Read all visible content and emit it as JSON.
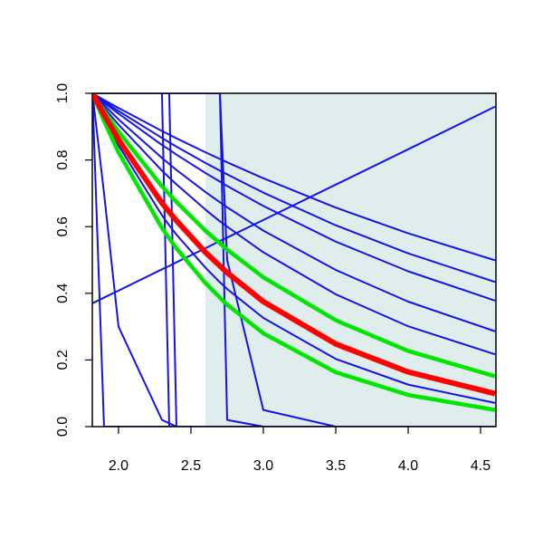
{
  "chart_data": {
    "type": "line",
    "xlim": [
      1.819,
      4.606
    ],
    "ylim": [
      0,
      1
    ],
    "xticks": [
      {
        "value": 2.0,
        "label": "2.0"
      },
      {
        "value": 2.5,
        "label": "2.5"
      },
      {
        "value": 3.0,
        "label": "3.0"
      },
      {
        "value": 3.5,
        "label": "3.5"
      },
      {
        "value": 4.0,
        "label": "4.0"
      },
      {
        "value": 4.5,
        "label": "4.5"
      }
    ],
    "yticks": [
      {
        "value": 0,
        "label": "0.0"
      },
      {
        "value": 0.2,
        "label": "0.2"
      },
      {
        "value": 0.4,
        "label": "0.4"
      },
      {
        "value": 0.6,
        "label": "0.6"
      },
      {
        "value": 0.8,
        "label": "0.8"
      },
      {
        "value": 1,
        "label": "1.0"
      }
    ],
    "shaded_region": {
      "x": [
        2.6,
        4.606
      ],
      "color": "#e0eded"
    },
    "x": [
      1.82,
      1.9,
      2.0,
      2.3,
      2.35,
      2.4,
      2.6,
      2.7,
      2.75,
      3.0,
      3.5,
      4.0,
      4.6
    ],
    "series": [
      {
        "color": "#1414e6",
        "values": [
          1,
          0.98,
          0.956,
          0.887,
          0.876,
          0.865,
          0.823,
          0.803,
          0.793,
          0.745,
          0.657,
          0.58,
          0.499
        ]
      },
      {
        "color": "#1414e6",
        "values": [
          1,
          0.976,
          0.947,
          0.866,
          0.853,
          0.84,
          0.791,
          0.768,
          0.757,
          0.702,
          0.604,
          0.52,
          0.434
        ]
      },
      {
        "color": "#1414e6",
        "values": [
          1,
          0.972,
          0.939,
          0.845,
          0.831,
          0.816,
          0.761,
          0.735,
          0.722,
          0.662,
          0.555,
          0.466,
          0.378
        ]
      },
      {
        "color": "#1414e6",
        "values": [
          1,
          0.965,
          0.922,
          0.806,
          0.788,
          0.77,
          0.704,
          0.673,
          0.658,
          0.588,
          0.47,
          0.375,
          0.286
        ]
      },
      {
        "color": "#1414e6",
        "values": [
          1,
          0.957,
          0.906,
          0.768,
          0.747,
          0.727,
          0.651,
          0.616,
          0.6,
          0.523,
          0.397,
          0.301,
          0.217
        ]
      },
      {
        "color": "#1414e6",
        "values": [
          1,
          0.927,
          0.843,
          0.634,
          0.604,
          0.576,
          0.477,
          0.433,
          0.413,
          0.326,
          0.203,
          0.126,
          0.071
        ]
      },
      {
        "color": "#1414e6",
        "values": [
          1,
          0,
          0,
          0,
          0,
          0,
          0,
          0,
          0,
          0,
          0,
          0,
          0
        ]
      },
      {
        "color": "#1414e6",
        "values": [
          1,
          0.7,
          0.3,
          0.02,
          0.01,
          0,
          0,
          0,
          0,
          0,
          0,
          0,
          0
        ]
      },
      {
        "color": "#1414e6",
        "values": [
          1,
          1,
          1,
          1,
          0,
          0,
          0,
          0,
          0,
          0,
          0,
          0,
          0
        ]
      },
      {
        "color": "#1414e6",
        "values": [
          1,
          1,
          1,
          1,
          1,
          0,
          0,
          0,
          0,
          0,
          0,
          0,
          0
        ]
      },
      {
        "color": "#1414e6",
        "values": [
          1,
          1,
          1,
          1,
          1,
          1,
          1,
          1,
          0.02,
          0,
          0,
          0,
          0
        ]
      },
      {
        "color": "#1414e6",
        "values": [
          1,
          1,
          1,
          1,
          1,
          1,
          1,
          1,
          0.5,
          0.05,
          0,
          0,
          0
        ]
      },
      {
        "color": "#1414e6",
        "values": [
          0.37,
          0.387,
          0.408,
          0.472,
          0.482,
          0.493,
          0.535,
          0.557,
          0.567,
          0.62,
          0.726,
          0.832,
          0.96
        ]
      },
      {
        "color": "#00e600",
        "values": [
          1,
          0.947,
          0.885,
          0.721,
          0.697,
          0.674,
          0.588,
          0.55,
          0.531,
          0.448,
          0.319,
          0.227,
          0.151
        ]
      },
      {
        "color": "#00e600",
        "values": [
          1,
          0.917,
          0.823,
          0.596,
          0.565,
          0.535,
          0.431,
          0.387,
          0.366,
          0.28,
          0.163,
          0.095,
          0.05
        ]
      },
      {
        "color": "#ff0000",
        "values": [
          1,
          0.936,
          0.861,
          0.671,
          0.644,
          0.618,
          0.523,
          0.482,
          0.462,
          0.375,
          0.248,
          0.164,
          0.099
        ]
      }
    ]
  }
}
